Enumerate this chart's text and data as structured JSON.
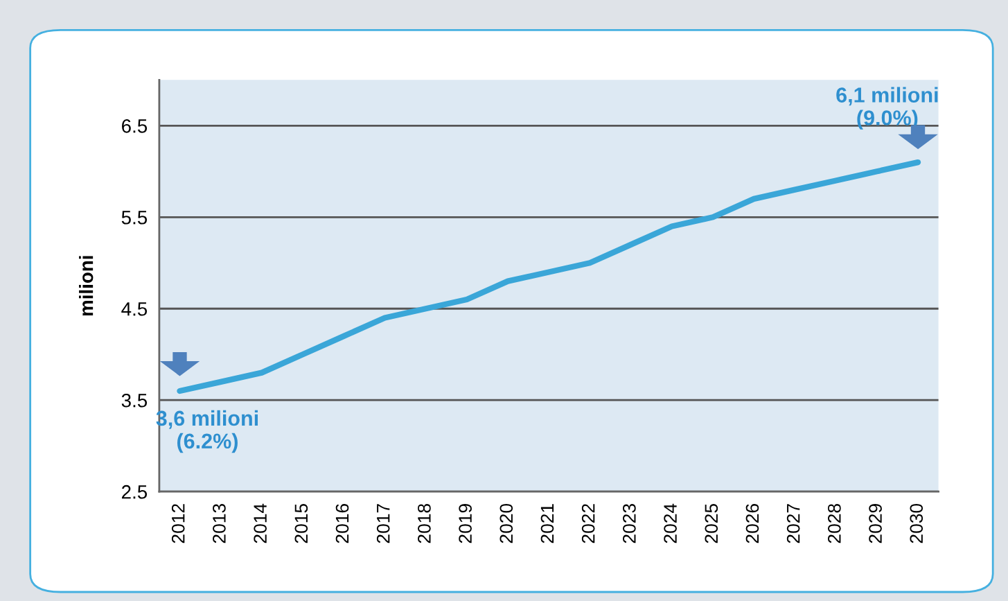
{
  "chart_data": {
    "type": "line",
    "ylabel": "milioni",
    "categories": [
      "2012",
      "2013",
      "2014",
      "2015",
      "2016",
      "2017",
      "2018",
      "2019",
      "2020",
      "2021",
      "2022",
      "2023",
      "2024",
      "2025",
      "2026",
      "2027",
      "2028",
      "2029",
      "2030"
    ],
    "series": [
      {
        "color": "#3aa6d8",
        "values": [
          3.6,
          3.7,
          3.8,
          4.0,
          4.2,
          4.4,
          4.5,
          4.6,
          4.8,
          4.9,
          5.0,
          5.2,
          5.4,
          5.5,
          5.7,
          5.8,
          5.9,
          6.0,
          6.1
        ]
      }
    ],
    "ylim": [
      2.5,
      7.0
    ],
    "yticks": [
      2.5,
      3.5,
      4.5,
      5.5,
      6.5
    ],
    "grid": "y",
    "marker": "none",
    "line_style": "solid",
    "annotations": [
      {
        "text": "3,6 milioni\n(6.2%)",
        "x": "2012",
        "y": 3.6
      },
      {
        "text": "6,1 milioni\n(9.0%)",
        "x": "2030",
        "y": 6.1
      }
    ]
  }
}
